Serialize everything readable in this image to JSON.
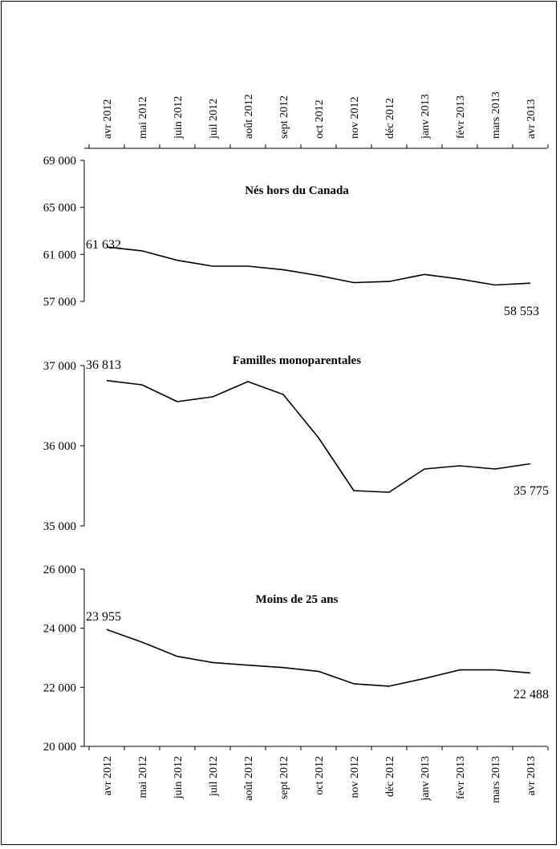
{
  "chart_data": [
    {
      "type": "line",
      "title": "Nés hors du Canada",
      "categories": [
        "avr 2012",
        "mai 2012",
        "juin 2012",
        "juil 2012",
        "août 2012",
        "sept 2012",
        "oct 2012",
        "nov 2012",
        "déc 2012",
        "janv 2013",
        "févr 2013",
        "mars 2013",
        "avr 2013"
      ],
      "values": [
        61632,
        61300,
        60500,
        60000,
        60000,
        59700,
        59200,
        58600,
        58700,
        59300,
        58900,
        58400,
        58553
      ],
      "ylim": [
        57000,
        69000
      ],
      "yticks": [
        57000,
        61000,
        65000,
        69000
      ],
      "ytick_labels": [
        "57 000",
        "61 000",
        "65 000",
        "69 000"
      ],
      "labels": {
        "first": "61 632",
        "last": "58 553"
      }
    },
    {
      "type": "line",
      "title": "Familles monoparentales",
      "categories": [
        "avr 2012",
        "mai 2012",
        "juin 2012",
        "juil 2012",
        "août 2012",
        "sept 2012",
        "oct 2012",
        "nov 2012",
        "déc 2012",
        "janv 2013",
        "févr 2013",
        "mars 2013",
        "avr 2013"
      ],
      "values": [
        36813,
        36760,
        36550,
        36610,
        36800,
        36640,
        36100,
        35440,
        35420,
        35710,
        35750,
        35710,
        35775
      ],
      "ylim": [
        35000,
        37000
      ],
      "yticks": [
        35000,
        36000,
        37000
      ],
      "ytick_labels": [
        "35 000",
        "36 000",
        "37 000"
      ],
      "labels": {
        "first": "36 813",
        "last": "35 775"
      }
    },
    {
      "type": "line",
      "title": "Moins de 25 ans",
      "categories": [
        "avr 2012",
        "mai 2012",
        "juin 2012",
        "juil 2012",
        "août 2012",
        "sept 2012",
        "oct 2012",
        "nov 2012",
        "déc 2012",
        "janv 2013",
        "févr 2013",
        "mars 2013",
        "avr 2013"
      ],
      "values": [
        23955,
        23530,
        23050,
        22840,
        22750,
        22670,
        22540,
        22120,
        22040,
        22300,
        22590,
        22590,
        22488
      ],
      "ylim": [
        20000,
        26000
      ],
      "yticks": [
        20000,
        22000,
        24000,
        26000
      ],
      "ytick_labels": [
        "20 000",
        "22 000",
        "24 000",
        "26 000"
      ],
      "labels": {
        "first": "23 955",
        "last": "22 488"
      }
    }
  ]
}
